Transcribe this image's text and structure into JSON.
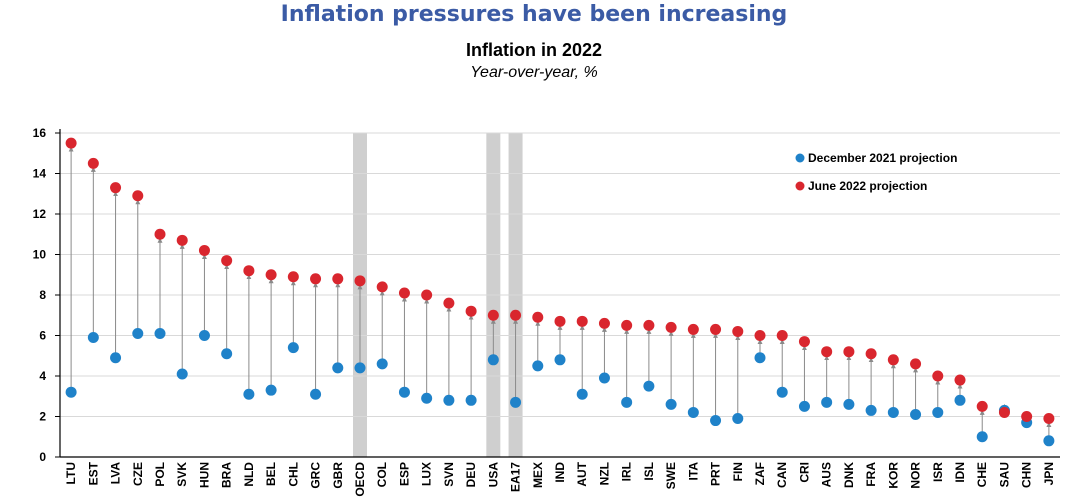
{
  "header": {
    "headline": "Inflation pressures have been increasing",
    "title": "Inflation in 2022",
    "subtitle": "Year-over-year, %"
  },
  "chart_data": {
    "type": "scatter",
    "title": "Inflation in 2022",
    "subtitle": "Year-over-year, %",
    "xlabel": "",
    "ylabel": "",
    "ylim": [
      0,
      16
    ],
    "yticks": [
      0,
      2,
      4,
      6,
      8,
      10,
      12,
      14,
      16
    ],
    "grid": true,
    "legend_position": "top-right",
    "categories": [
      "LTU",
      "EST",
      "LVA",
      "CZE",
      "POL",
      "SVK",
      "HUN",
      "BRA",
      "NLD",
      "BEL",
      "CHL",
      "GRC",
      "GBR",
      "OECD",
      "COL",
      "ESP",
      "LUX",
      "SVN",
      "DEU",
      "USA",
      "EA17",
      "MEX",
      "IND",
      "AUT",
      "NZL",
      "IRL",
      "ISL",
      "SWE",
      "ITA",
      "PRT",
      "FIN",
      "ZAF",
      "CAN",
      "CRI",
      "AUS",
      "DNK",
      "FRA",
      "KOR",
      "NOR",
      "ISR",
      "IDN",
      "CHE",
      "SAU",
      "CHN",
      "JPN"
    ],
    "highlighted": [
      "OECD",
      "USA",
      "EA17"
    ],
    "series": [
      {
        "name": "December 2021 projection",
        "color": "#1f82c9",
        "values": [
          3.2,
          5.9,
          4.9,
          6.1,
          6.1,
          4.1,
          6.0,
          5.1,
          3.1,
          3.3,
          5.4,
          3.1,
          4.4,
          4.4,
          4.6,
          3.2,
          2.9,
          2.8,
          2.8,
          4.8,
          2.7,
          4.5,
          4.8,
          3.1,
          3.9,
          2.7,
          3.5,
          2.6,
          2.2,
          1.8,
          1.9,
          4.9,
          3.2,
          2.5,
          2.7,
          2.6,
          2.3,
          2.2,
          2.1,
          2.2,
          2.8,
          1.0,
          2.3,
          1.7,
          0.8
        ]
      },
      {
        "name": "June 2022 projection",
        "color": "#d9262e",
        "values": [
          15.5,
          14.5,
          13.3,
          12.9,
          11.0,
          10.7,
          10.2,
          9.7,
          9.2,
          9.0,
          8.9,
          8.8,
          8.8,
          8.7,
          8.4,
          8.1,
          8.0,
          7.6,
          7.2,
          7.0,
          7.0,
          6.9,
          6.7,
          6.7,
          6.6,
          6.5,
          6.5,
          6.4,
          6.3,
          6.3,
          6.2,
          6.0,
          6.0,
          5.7,
          5.2,
          5.2,
          5.1,
          4.8,
          4.6,
          4.0,
          3.8,
          2.5,
          2.2,
          2.0,
          1.9
        ]
      }
    ]
  }
}
